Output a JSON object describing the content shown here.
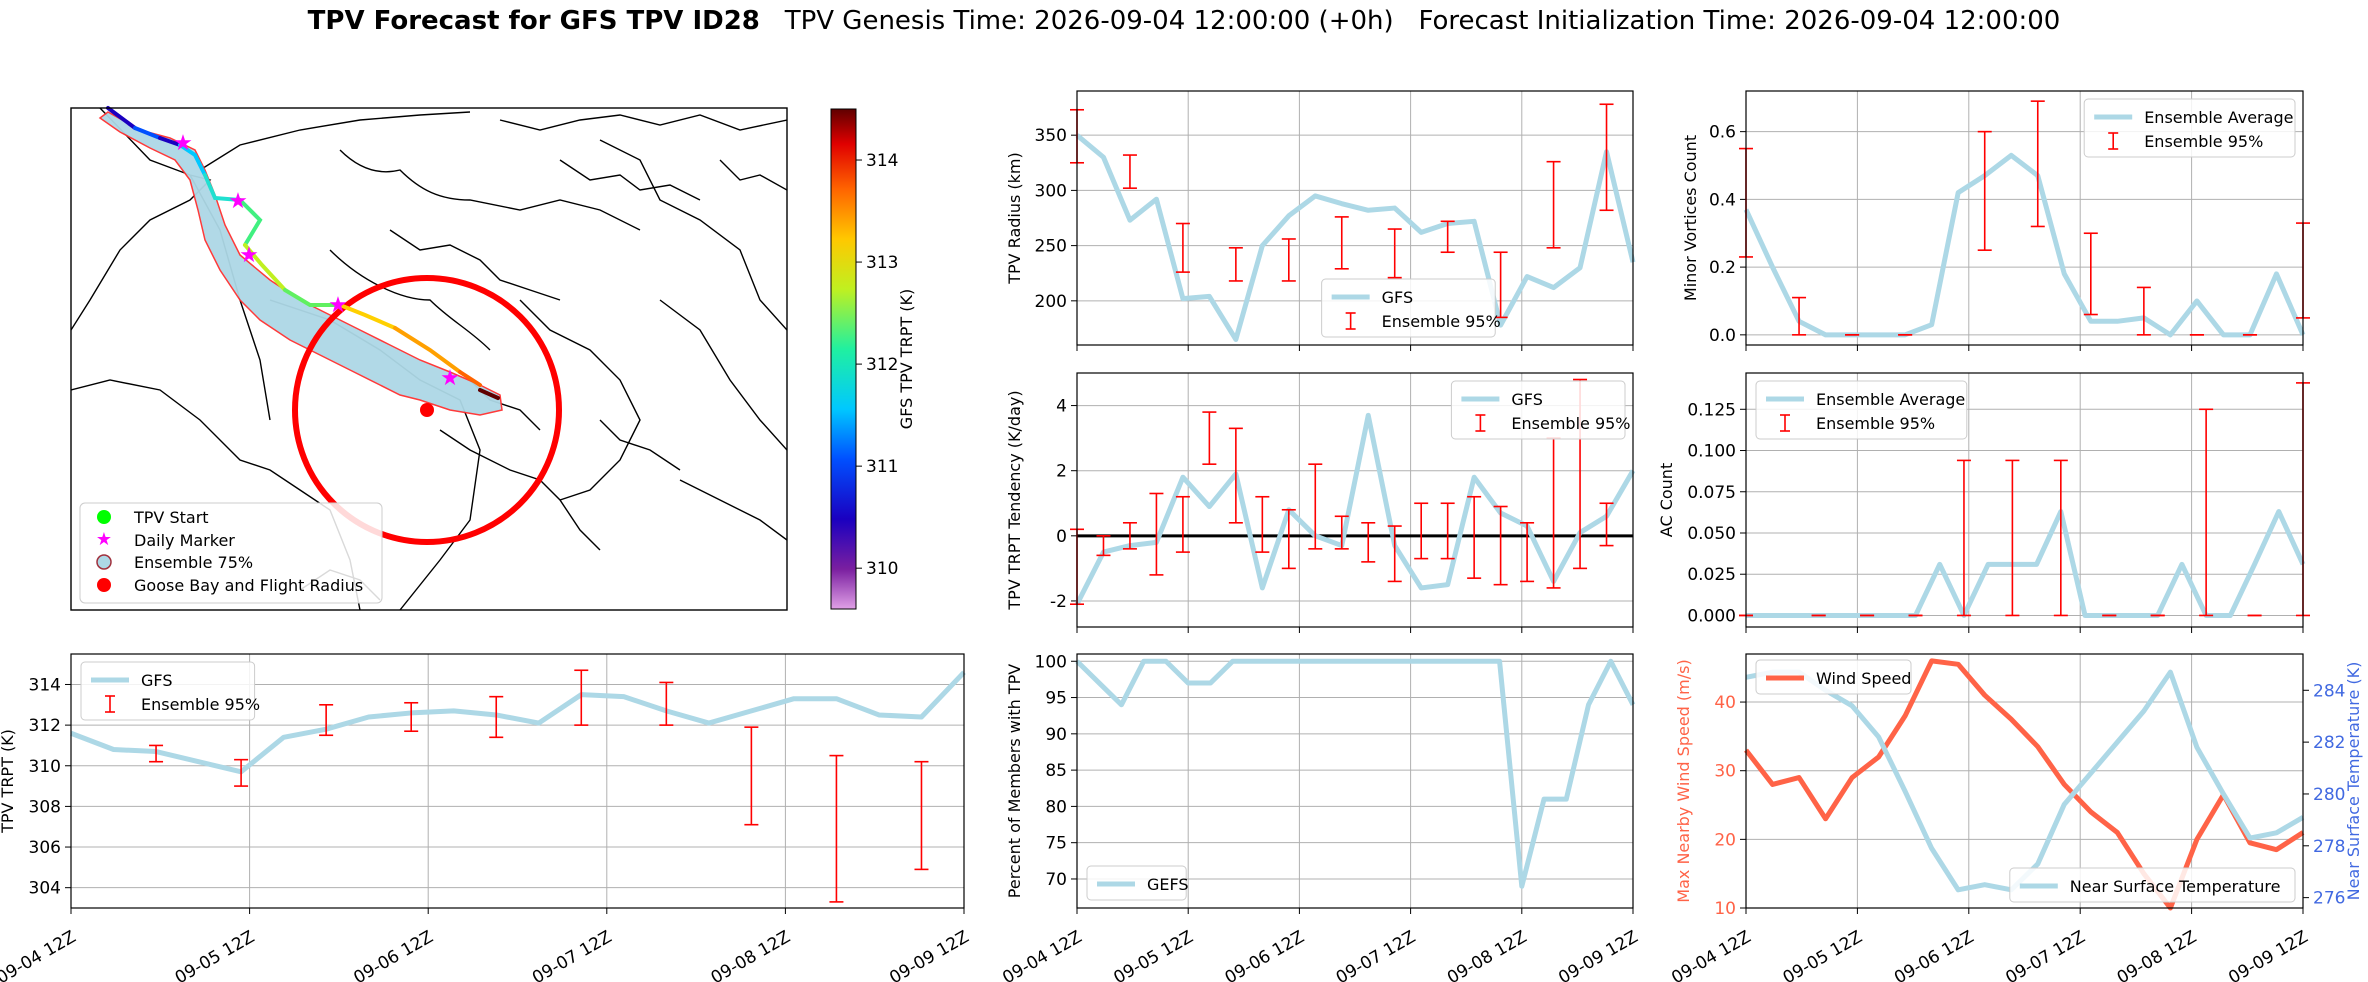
{
  "title": {
    "bold": "TPV Forecast for GFS TPV ID28",
    "genesis": "TPV Genesis Time: 2026-09-04 12:00:00 (+0h)",
    "init": "Forecast Initialization Time: 2026-09-04 12:00:00"
  },
  "colors": {
    "series": "#add8e6",
    "error": "#ff0000",
    "wind": "#ff6347",
    "temp_axis": "#4169e1",
    "grid": "#b0b0b0"
  },
  "time_ticks": [
    "09-04 12Z",
    "09-05 12Z",
    "09-06 12Z",
    "09-07 12Z",
    "09-08 12Z",
    "09-09 12Z"
  ],
  "map": {
    "colorbar_label": "GFS TPV TRPT (K)",
    "colorbar_ticks": [
      310,
      311,
      312,
      313,
      314
    ],
    "colorbar_range": [
      309.6,
      314.5
    ],
    "legend": [
      "TPV Start",
      "Daily Marker",
      "Ensemble 75%",
      "Goose Bay and Flight Radius"
    ]
  },
  "chart_data": [
    {
      "id": "radius",
      "type": "line",
      "ylabel": "TPV Radius (km)",
      "ylim": [
        160,
        390
      ],
      "yticks": [
        200,
        250,
        300,
        350
      ],
      "zero_line": false,
      "legend": [
        "GFS",
        "Ensemble 95%"
      ],
      "legend_pos": "lower-center",
      "series": [
        {
          "name": "GFS",
          "values": [
            350,
            330,
            273,
            292,
            202,
            204,
            165,
            250,
            277,
            295,
            288,
            282,
            284,
            262,
            270,
            272,
            178,
            222,
            212,
            230,
            335,
            235
          ]
        }
      ],
      "errorbars": [
        [
          0,
          325,
          373
        ],
        [
          2,
          302,
          332
        ],
        [
          4,
          226,
          270
        ],
        [
          6,
          218,
          248
        ],
        [
          8,
          218,
          256
        ],
        [
          10,
          229,
          276
        ],
        [
          12,
          221,
          265
        ],
        [
          14,
          244,
          272
        ],
        [
          16,
          185,
          244
        ],
        [
          18,
          248,
          326
        ],
        [
          20,
          282,
          378
        ]
      ]
    },
    {
      "id": "minor",
      "type": "line",
      "ylabel": "Minor Vortices Count",
      "ylim": [
        -0.03,
        0.72
      ],
      "yticks": [
        0.0,
        0.2,
        0.4,
        0.6
      ],
      "zero_line": false,
      "legend": [
        "Ensemble Average",
        "Ensemble 95%"
      ],
      "legend_pos": "upper-right",
      "series": [
        {
          "name": "Ensemble Average",
          "values": [
            0.37,
            0.2,
            0.04,
            0.0,
            0.0,
            0.0,
            0.0,
            0.03,
            0.42,
            0.47,
            0.53,
            0.47,
            0.18,
            0.04,
            0.04,
            0.05,
            0.0,
            0.1,
            0.0,
            0.0,
            0.18,
            0.0
          ]
        }
      ],
      "errorbars": [
        [
          0,
          0.23,
          0.55
        ],
        [
          2,
          0.0,
          0.11
        ],
        [
          4,
          0.0,
          0.0
        ],
        [
          6,
          0.0,
          0.0
        ],
        [
          9,
          0.25,
          0.6
        ],
        [
          11,
          0.32,
          0.69
        ],
        [
          13,
          0.06,
          0.3
        ],
        [
          15,
          0.0,
          0.14
        ],
        [
          17,
          0.0,
          0.0
        ],
        [
          19,
          0.0,
          0.0
        ],
        [
          21,
          0.05,
          0.33
        ]
      ]
    },
    {
      "id": "tendency",
      "type": "line",
      "ylabel": "TPV TRPT Tendency (K/day)",
      "ylim": [
        -2.8,
        5.0
      ],
      "yticks": [
        -2,
        0,
        2,
        4
      ],
      "zero_line": true,
      "legend": [
        "GFS",
        "Ensemble 95%"
      ],
      "legend_pos": "upper-right",
      "series": [
        {
          "name": "GFS",
          "values": [
            -2.1,
            -0.5,
            -0.3,
            -0.2,
            1.8,
            0.9,
            1.9,
            -1.6,
            0.8,
            0.0,
            -0.3,
            3.7,
            -0.3,
            -1.6,
            -1.5,
            1.8,
            0.7,
            0.3,
            -1.4,
            0.1,
            0.6,
            2.0
          ]
        }
      ],
      "errorbars": [
        [
          0,
          -2.1,
          0.2
        ],
        [
          1,
          -0.6,
          0.0
        ],
        [
          2,
          -0.4,
          0.4
        ],
        [
          3,
          -1.2,
          1.3
        ],
        [
          4,
          -0.5,
          1.2
        ],
        [
          5,
          2.2,
          3.8
        ],
        [
          6,
          0.4,
          3.3
        ],
        [
          7,
          -0.5,
          1.2
        ],
        [
          8,
          -1.0,
          0.8
        ],
        [
          9,
          -0.4,
          2.2
        ],
        [
          10,
          -0.4,
          0.6
        ],
        [
          11,
          -0.8,
          0.4
        ],
        [
          12,
          -1.4,
          0.3
        ],
        [
          13,
          -0.7,
          1.0
        ],
        [
          14,
          -0.7,
          1.0
        ],
        [
          15,
          -1.3,
          1.2
        ],
        [
          16,
          -1.5,
          0.9
        ],
        [
          17,
          -1.4,
          0.4
        ],
        [
          18,
          -1.6,
          3.0
        ],
        [
          19,
          -1.0,
          4.8
        ],
        [
          20,
          -0.3,
          1.0
        ]
      ]
    },
    {
      "id": "ac",
      "type": "line",
      "ylabel": "AC Count",
      "ylim": [
        -0.007,
        0.147
      ],
      "yticks": [
        0.0,
        0.025,
        0.05,
        0.075,
        0.1,
        0.125
      ],
      "zero_line": false,
      "legend": [
        "Ensemble Average",
        "Ensemble 95%"
      ],
      "legend_pos": "upper-left",
      "series": [
        {
          "name": "Ensemble Average",
          "values": [
            0.0,
            0.0,
            0.0,
            0.0,
            0.0,
            0.0,
            0.0,
            0.0,
            0.031,
            0.0,
            0.031,
            0.031,
            0.031,
            0.063,
            0.0,
            0.0,
            0.0,
            0.0,
            0.031,
            0.0,
            0.0,
            0.031,
            0.063,
            0.031
          ]
        }
      ],
      "errorbars": [
        [
          0,
          0.0,
          0.0
        ],
        [
          3,
          0.0,
          0.0
        ],
        [
          5,
          0.0,
          0.0
        ],
        [
          7,
          0.0,
          0.0
        ],
        [
          9,
          0.0,
          0.094
        ],
        [
          11,
          0.0,
          0.094
        ],
        [
          13,
          0.0,
          0.094
        ],
        [
          15,
          0.0,
          0.0
        ],
        [
          17,
          0.0,
          0.0
        ],
        [
          19,
          0.0,
          0.125
        ],
        [
          21,
          0.0,
          0.0
        ],
        [
          23,
          0.0,
          0.141
        ]
      ]
    },
    {
      "id": "trpt",
      "type": "line",
      "ylabel": "TPV TRPT (K)",
      "ylim": [
        303,
        315.5
      ],
      "yticks": [
        304,
        306,
        308,
        310,
        312,
        314
      ],
      "zero_line": false,
      "legend": [
        "GFS",
        "Ensemble 95%"
      ],
      "legend_pos": "upper-left",
      "series": [
        {
          "name": "GFS",
          "values": [
            311.6,
            310.8,
            310.7,
            310.2,
            309.7,
            311.4,
            311.8,
            312.4,
            312.6,
            312.7,
            312.5,
            312.1,
            313.5,
            313.4,
            312.7,
            312.1,
            312.7,
            313.3,
            313.3,
            312.5,
            312.4,
            314.6
          ]
        }
      ],
      "errorbars": [
        [
          2,
          310.2,
          311.0
        ],
        [
          4,
          309.0,
          310.3
        ],
        [
          6,
          311.5,
          313.0
        ],
        [
          8,
          311.7,
          313.1
        ],
        [
          10,
          311.4,
          313.4
        ],
        [
          12,
          312.0,
          314.7
        ],
        [
          14,
          312.0,
          314.1
        ],
        [
          16,
          307.1,
          311.9
        ],
        [
          18,
          303.3,
          310.5
        ],
        [
          20,
          304.9,
          310.2
        ]
      ]
    },
    {
      "id": "members",
      "type": "line",
      "ylabel": "Percent of Members with TPV",
      "ylim": [
        66,
        101
      ],
      "yticks": [
        70,
        75,
        80,
        85,
        90,
        95,
        100
      ],
      "zero_line": false,
      "legend": [
        "GEFS"
      ],
      "legend_pos": "lower-left",
      "series": [
        {
          "name": "GEFS",
          "values": [
            100,
            97,
            94,
            100,
            100,
            97,
            97,
            100,
            100,
            100,
            100,
            100,
            100,
            100,
            100,
            100,
            100,
            100,
            100,
            100,
            69,
            81,
            81,
            94,
            100,
            94
          ]
        }
      ],
      "errorbars": []
    },
    {
      "id": "wind_temp",
      "type": "line",
      "ylabel": "Max Nearby Wind Speed (m/s)",
      "ylabel_right": "Near Surface Temperature (K)",
      "ylim": [
        10,
        47
      ],
      "yticks": [
        10,
        20,
        30,
        40
      ],
      "ylim_right": [
        275.6,
        285.4
      ],
      "yticks_right": [
        276,
        278,
        280,
        282,
        284
      ],
      "legend": [
        "Wind Speed",
        "Near Surface Temperature"
      ],
      "series": [
        {
          "name": "Wind Speed",
          "axis": "left",
          "values": [
            33,
            28,
            29,
            23,
            29,
            32,
            38,
            46,
            45.5,
            41,
            37.5,
            33.5,
            28,
            24,
            21,
            15,
            10,
            20,
            26.5,
            19.5,
            18.5,
            21
          ]
        },
        {
          "name": "Near Surface Temperature",
          "axis": "right",
          "values": [
            284.5,
            284.7,
            284.7,
            284.0,
            283.4,
            282.2,
            280.1,
            277.9,
            276.3,
            276.5,
            276.3,
            277.3,
            279.6,
            280.8,
            282.0,
            283.2,
            284.7,
            281.8,
            280.0,
            278.3,
            278.5,
            279.1
          ]
        }
      ]
    }
  ]
}
